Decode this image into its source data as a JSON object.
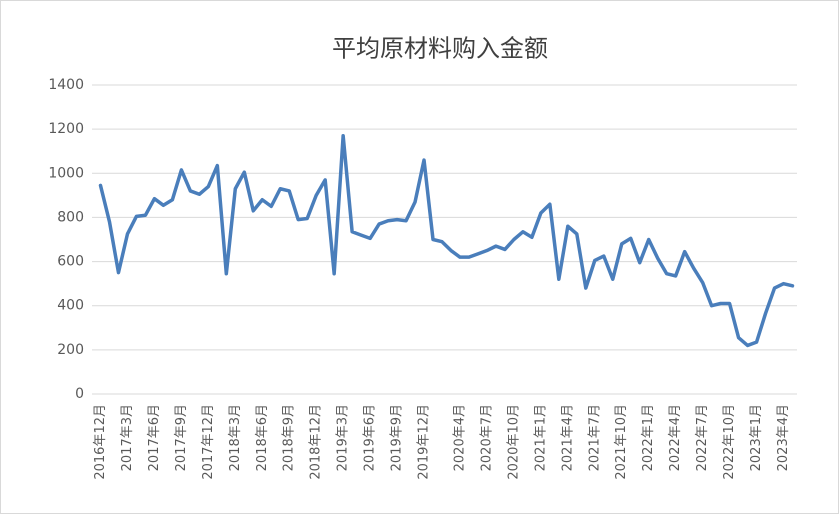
{
  "chart_data": {
    "type": "line",
    "title": "平均原材料购入金额",
    "categories": [
      "2016年12月",
      null,
      null,
      "2017年3月",
      null,
      null,
      "2017年6月",
      null,
      null,
      "2017年9月",
      null,
      null,
      "2017年12月",
      null,
      null,
      "2018年3月",
      null,
      null,
      "2018年6月",
      null,
      null,
      "2018年9月",
      null,
      null,
      "2018年12月",
      null,
      null,
      "2019年3月",
      null,
      null,
      "2019年6月",
      null,
      null,
      "2019年9月",
      null,
      null,
      "2019年12月",
      null,
      null,
      null,
      "2020年4月",
      null,
      null,
      "2020年7月",
      null,
      null,
      "2020年10月",
      null,
      null,
      "2021年1月",
      null,
      null,
      "2021年4月",
      null,
      null,
      "2021年7月",
      null,
      null,
      "2021年10月",
      null,
      null,
      "2022年1月",
      null,
      null,
      "2022年4月",
      null,
      null,
      "2022年7月",
      null,
      null,
      "2022年10月",
      null,
      null,
      "2023年1月",
      null,
      null,
      "2023年4月",
      null
    ],
    "values": [
      945,
      780,
      550,
      725,
      805,
      810,
      885,
      855,
      880,
      1015,
      920,
      905,
      940,
      1035,
      545,
      930,
      1005,
      830,
      880,
      850,
      930,
      920,
      790,
      795,
      900,
      970,
      545,
      1170,
      735,
      720,
      705,
      770,
      785,
      790,
      785,
      870,
      1060,
      700,
      690,
      650,
      620,
      620,
      635,
      650,
      670,
      655,
      700,
      735,
      710,
      820,
      860,
      520,
      760,
      725,
      480,
      605,
      625,
      520,
      680,
      705,
      595,
      700,
      615,
      545,
      535,
      645,
      570,
      505,
      400,
      410,
      410,
      255,
      220,
      235,
      365,
      480,
      500,
      490
    ],
    "color": "#4a7ebb",
    "ylim": [
      0,
      1400
    ],
    "yticks": [
      0,
      200,
      400,
      600,
      800,
      1000,
      1200,
      1400
    ],
    "grid": true
  }
}
